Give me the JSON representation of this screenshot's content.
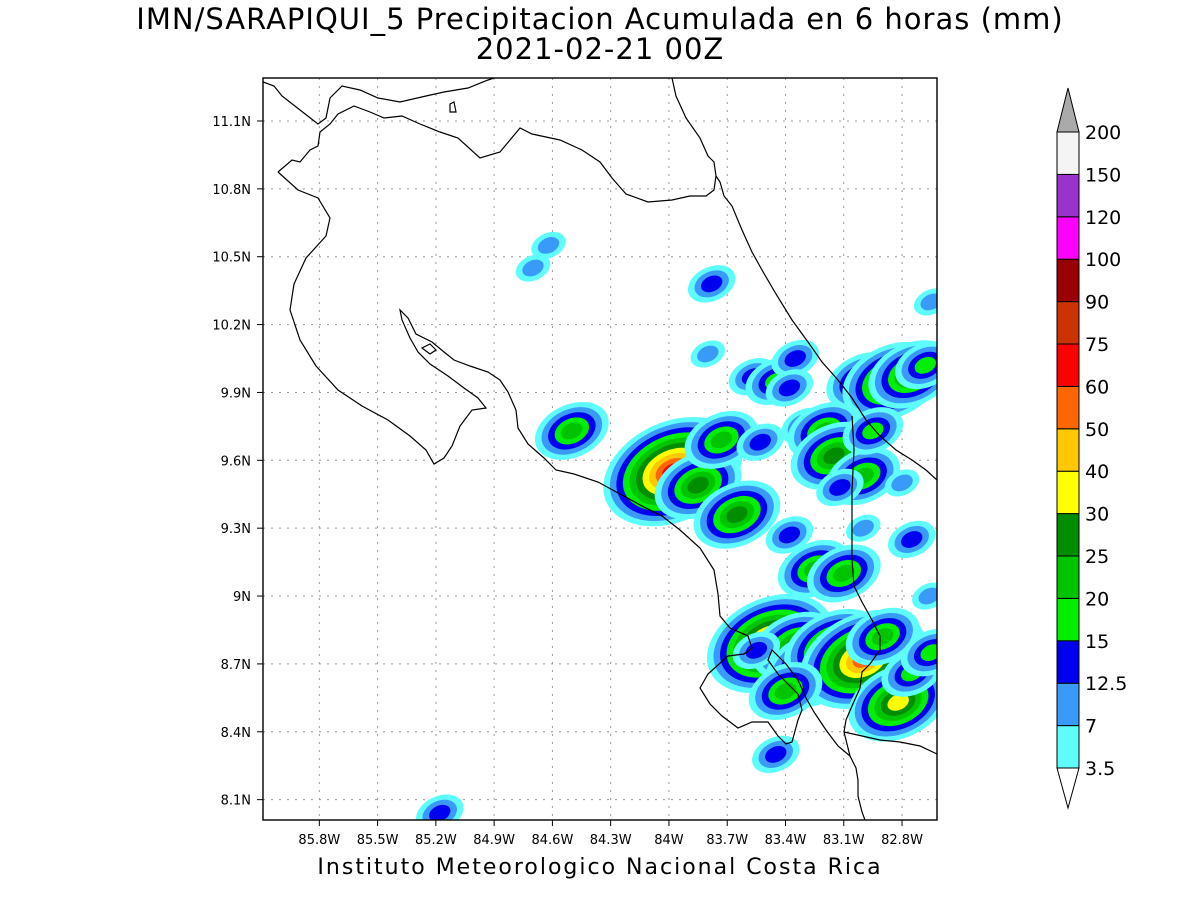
{
  "title": {
    "line1": "IMN/SARAPIQUI_5 Precipitacion Acumulada en 6 horas (mm)",
    "line2": "2021-02-21 00Z"
  },
  "footer": "Instituto Meteorologico Nacional Costa Rica",
  "map": {
    "lon_range": [
      -86.09,
      -82.62
    ],
    "lat_range": [
      8.01,
      11.29
    ],
    "x_ticks": [
      "85.8W",
      "85.5W",
      "85.2W",
      "84.9W",
      "84.6W",
      "84.3W",
      "84W",
      "83.7W",
      "83.4W",
      "83.1W",
      "82.8W"
    ],
    "x_tick_values": [
      -85.8,
      -85.5,
      -85.2,
      -84.9,
      -84.6,
      -84.3,
      -84.0,
      -83.7,
      -83.4,
      -83.1,
      -82.8
    ],
    "y_ticks": [
      "11.1N",
      "10.8N",
      "10.5N",
      "10.2N",
      "9.9N",
      "9.6N",
      "9.3N",
      "9N",
      "8.7N",
      "8.4N",
      "8.1N"
    ],
    "y_tick_values": [
      11.1,
      10.8,
      10.5,
      10.2,
      9.9,
      9.6,
      9.3,
      9.0,
      8.7,
      8.4,
      8.1
    ],
    "grid": "dotted"
  },
  "legend": {
    "labels": [
      "200",
      "150",
      "120",
      "100",
      "90",
      "75",
      "60",
      "50",
      "40",
      "30",
      "25",
      "20",
      "15",
      "12.5",
      "7",
      "3.5"
    ],
    "colors_bottom_to_top": [
      "#5ffcfc",
      "#3a9af8",
      "#0000f0",
      "#00ee00",
      "#00c400",
      "#008e00",
      "#ffff00",
      "#ffc800",
      "#ff6600",
      "#ff0000",
      "#cc3300",
      "#990000",
      "#ff00ff",
      "#9933cc",
      "#f4f4f4"
    ],
    "over_color": "#aaaaaa",
    "under_color": "#ffffff"
  },
  "precip_cells": [
    {
      "lon": -83.78,
      "lat": 10.38,
      "level": 2
    },
    {
      "lon": -83.8,
      "lat": 10.07,
      "level": 1
    },
    {
      "lon": -83.57,
      "lat": 9.97,
      "level": 2
    },
    {
      "lon": -83.45,
      "lat": 9.95,
      "level": 3
    },
    {
      "lon": -83.35,
      "lat": 10.05,
      "level": 2
    },
    {
      "lon": -83.38,
      "lat": 9.92,
      "level": 2
    },
    {
      "lon": -84.5,
      "lat": 9.73,
      "level": 4
    },
    {
      "lon": -84.15,
      "lat": 9.6,
      "level": 2
    },
    {
      "lon": -83.98,
      "lat": 9.55,
      "level": 9
    },
    {
      "lon": -83.85,
      "lat": 9.49,
      "level": 5
    },
    {
      "lon": -83.73,
      "lat": 9.69,
      "level": 4
    },
    {
      "lon": -83.65,
      "lat": 9.36,
      "level": 5
    },
    {
      "lon": -83.53,
      "lat": 9.68,
      "level": 2
    },
    {
      "lon": -83.3,
      "lat": 9.75,
      "level": 2
    },
    {
      "lon": -83.2,
      "lat": 9.73,
      "level": 4
    },
    {
      "lon": -83.15,
      "lat": 9.62,
      "level": 5
    },
    {
      "lon": -83.0,
      "lat": 9.53,
      "level": 4
    },
    {
      "lon": -83.12,
      "lat": 9.48,
      "level": 2
    },
    {
      "lon": -83.0,
      "lat": 9.95,
      "level": 4
    },
    {
      "lon": -82.85,
      "lat": 9.95,
      "level": 6
    },
    {
      "lon": -82.75,
      "lat": 9.98,
      "level": 5
    },
    {
      "lon": -82.68,
      "lat": 10.02,
      "level": 3
    },
    {
      "lon": -82.95,
      "lat": 9.73,
      "level": 3
    },
    {
      "lon": -83.38,
      "lat": 9.27,
      "level": 2
    },
    {
      "lon": -83.25,
      "lat": 9.12,
      "level": 4
    },
    {
      "lon": -83.1,
      "lat": 9.1,
      "level": 4
    },
    {
      "lon": -83.48,
      "lat": 8.79,
      "level": 8
    },
    {
      "lon": -83.35,
      "lat": 8.78,
      "level": 5
    },
    {
      "lon": -83.25,
      "lat": 8.68,
      "level": 6
    },
    {
      "lon": -83.15,
      "lat": 8.77,
      "level": 6
    },
    {
      "lon": -83.0,
      "lat": 8.72,
      "level": 8
    },
    {
      "lon": -82.9,
      "lat": 8.82,
      "level": 4
    },
    {
      "lon": -83.4,
      "lat": 8.58,
      "level": 4
    },
    {
      "lon": -82.82,
      "lat": 8.53,
      "level": 6
    },
    {
      "lon": -82.75,
      "lat": 8.66,
      "level": 3
    },
    {
      "lon": -82.65,
      "lat": 8.75,
      "level": 3
    },
    {
      "lon": -83.55,
      "lat": 8.76,
      "level": 2
    },
    {
      "lon": -82.75,
      "lat": 9.25,
      "level": 2
    },
    {
      "lon": -83.0,
      "lat": 9.3,
      "level": 1
    },
    {
      "lon": -82.8,
      "lat": 9.5,
      "level": 1
    },
    {
      "lon": -85.18,
      "lat": 8.04,
      "level": 2
    },
    {
      "lon": -84.7,
      "lat": 10.45,
      "level": 1
    },
    {
      "lon": -84.62,
      "lat": 10.55,
      "level": 1
    },
    {
      "lon": -83.45,
      "lat": 8.3,
      "level": 2
    },
    {
      "lon": -82.65,
      "lat": 10.3,
      "level": 1
    },
    {
      "lon": -82.66,
      "lat": 9.0,
      "level": 1
    }
  ]
}
